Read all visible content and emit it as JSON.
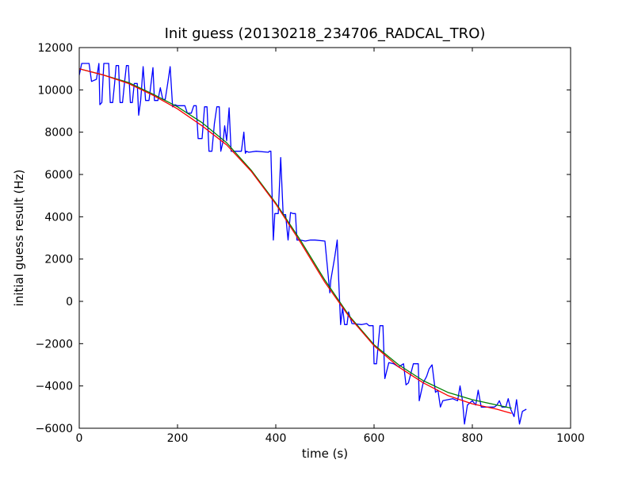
{
  "chart_data": {
    "type": "line",
    "title": "Init guess (20130218_234706_RADCAL_TRO)",
    "xlabel": "time (s)",
    "ylabel": "initial guess result (Hz)",
    "xlim": [
      0,
      1000
    ],
    "ylim": [
      -6000,
      12000
    ],
    "x_ticks": [
      0,
      200,
      400,
      600,
      800,
      1000
    ],
    "y_ticks": [
      -6000,
      -4000,
      -2000,
      0,
      2000,
      4000,
      6000,
      8000,
      10000,
      12000
    ],
    "grid": false,
    "legend": "none",
    "series": [
      {
        "color": "#0000ff",
        "points": [
          [
            0,
            10700
          ],
          [
            5,
            11250
          ],
          [
            20,
            11250
          ],
          [
            25,
            10400
          ],
          [
            35,
            10500
          ],
          [
            40,
            11250
          ],
          [
            42,
            9300
          ],
          [
            46,
            9400
          ],
          [
            50,
            11250
          ],
          [
            60,
            11250
          ],
          [
            63,
            9400
          ],
          [
            68,
            9400
          ],
          [
            72,
            10300
          ],
          [
            75,
            11150
          ],
          [
            80,
            11150
          ],
          [
            83,
            9400
          ],
          [
            88,
            9400
          ],
          [
            92,
            10300
          ],
          [
            96,
            11150
          ],
          [
            100,
            11150
          ],
          [
            104,
            9400
          ],
          [
            108,
            9400
          ],
          [
            112,
            10300
          ],
          [
            118,
            10300
          ],
          [
            121,
            8800
          ],
          [
            125,
            9500
          ],
          [
            130,
            11100
          ],
          [
            135,
            9500
          ],
          [
            142,
            9500
          ],
          [
            150,
            11050
          ],
          [
            153,
            9500
          ],
          [
            160,
            9500
          ],
          [
            165,
            10100
          ],
          [
            170,
            9550
          ],
          [
            175,
            9550
          ],
          [
            180,
            10300
          ],
          [
            185,
            11100
          ],
          [
            190,
            9200
          ],
          [
            195,
            9300
          ],
          [
            200,
            9250
          ],
          [
            215,
            9250
          ],
          [
            220,
            8900
          ],
          [
            228,
            8900
          ],
          [
            233,
            9250
          ],
          [
            238,
            9250
          ],
          [
            242,
            7700
          ],
          [
            250,
            7700
          ],
          [
            255,
            9200
          ],
          [
            260,
            9200
          ],
          [
            264,
            7100
          ],
          [
            270,
            7100
          ],
          [
            275,
            8400
          ],
          [
            280,
            9200
          ],
          [
            285,
            9200
          ],
          [
            288,
            7100
          ],
          [
            293,
            7600
          ],
          [
            296,
            8300
          ],
          [
            300,
            7600
          ],
          [
            305,
            9150
          ],
          [
            309,
            7100
          ],
          [
            315,
            7100
          ],
          [
            330,
            7100
          ],
          [
            335,
            8000
          ],
          [
            338,
            7000
          ],
          [
            340,
            7100
          ],
          [
            345,
            7050
          ],
          [
            360,
            7100
          ],
          [
            385,
            7050
          ],
          [
            387,
            7100
          ],
          [
            390,
            7100
          ],
          [
            395,
            2900
          ],
          [
            398,
            4150
          ],
          [
            405,
            4150
          ],
          [
            410,
            6800
          ],
          [
            415,
            4100
          ],
          [
            420,
            4100
          ],
          [
            425,
            2900
          ],
          [
            430,
            4200
          ],
          [
            435,
            4150
          ],
          [
            440,
            4150
          ],
          [
            443,
            2900
          ],
          [
            450,
            2900
          ],
          [
            460,
            2850
          ],
          [
            470,
            2900
          ],
          [
            480,
            2900
          ],
          [
            500,
            2850
          ],
          [
            510,
            400
          ],
          [
            512,
            1000
          ],
          [
            520,
            2100
          ],
          [
            525,
            2900
          ],
          [
            528,
            1000
          ],
          [
            532,
            -1100
          ],
          [
            536,
            -300
          ],
          [
            540,
            -1100
          ],
          [
            545,
            -1100
          ],
          [
            548,
            -500
          ],
          [
            555,
            -1050
          ],
          [
            575,
            -1100
          ],
          [
            585,
            -1050
          ],
          [
            590,
            -1150
          ],
          [
            598,
            -1150
          ],
          [
            600,
            -2950
          ],
          [
            605,
            -2950
          ],
          [
            612,
            -1150
          ],
          [
            618,
            -1150
          ],
          [
            622,
            -3650
          ],
          [
            630,
            -2900
          ],
          [
            640,
            -2950
          ],
          [
            650,
            -3100
          ],
          [
            660,
            -2950
          ],
          [
            665,
            -3950
          ],
          [
            670,
            -3850
          ],
          [
            680,
            -2950
          ],
          [
            690,
            -2950
          ],
          [
            692,
            -4700
          ],
          [
            700,
            -3850
          ],
          [
            707,
            -3550
          ],
          [
            712,
            -3200
          ],
          [
            718,
            -3000
          ],
          [
            725,
            -4300
          ],
          [
            730,
            -4200
          ],
          [
            735,
            -5000
          ],
          [
            740,
            -4700
          ],
          [
            750,
            -4650
          ],
          [
            760,
            -4600
          ],
          [
            770,
            -4700
          ],
          [
            775,
            -4000
          ],
          [
            780,
            -4700
          ],
          [
            784,
            -5800
          ],
          [
            790,
            -4900
          ],
          [
            800,
            -4700
          ],
          [
            807,
            -4900
          ],
          [
            812,
            -4200
          ],
          [
            818,
            -5000
          ],
          [
            825,
            -5000
          ],
          [
            830,
            -5000
          ],
          [
            845,
            -5000
          ],
          [
            850,
            -4900
          ],
          [
            855,
            -4700
          ],
          [
            860,
            -5000
          ],
          [
            868,
            -5000
          ],
          [
            873,
            -4600
          ],
          [
            878,
            -5100
          ],
          [
            885,
            -5450
          ],
          [
            890,
            -4650
          ],
          [
            896,
            -5800
          ],
          [
            902,
            -5200
          ],
          [
            910,
            -5100
          ]
        ]
      },
      {
        "color": "#008000",
        "points": [
          [
            0,
            11000
          ],
          [
            50,
            10700
          ],
          [
            100,
            10350
          ],
          [
            150,
            9800
          ],
          [
            200,
            9200
          ],
          [
            250,
            8450
          ],
          [
            300,
            7500
          ],
          [
            350,
            6200
          ],
          [
            400,
            4650
          ],
          [
            450,
            2900
          ],
          [
            500,
            1000
          ],
          [
            550,
            -700
          ],
          [
            600,
            -2050
          ],
          [
            650,
            -3000
          ],
          [
            700,
            -3750
          ],
          [
            750,
            -4300
          ],
          [
            800,
            -4650
          ],
          [
            850,
            -4900
          ],
          [
            880,
            -5050
          ]
        ]
      },
      {
        "color": "#ff0000",
        "points": [
          [
            0,
            11000
          ],
          [
            50,
            10700
          ],
          [
            100,
            10300
          ],
          [
            150,
            9750
          ],
          [
            200,
            9100
          ],
          [
            250,
            8300
          ],
          [
            300,
            7400
          ],
          [
            350,
            6150
          ],
          [
            400,
            4600
          ],
          [
            450,
            2800
          ],
          [
            500,
            900
          ],
          [
            550,
            -750
          ],
          [
            600,
            -2100
          ],
          [
            650,
            -3100
          ],
          [
            700,
            -3850
          ],
          [
            750,
            -4450
          ],
          [
            800,
            -4850
          ],
          [
            850,
            -5100
          ],
          [
            880,
            -5300
          ]
        ]
      }
    ]
  }
}
